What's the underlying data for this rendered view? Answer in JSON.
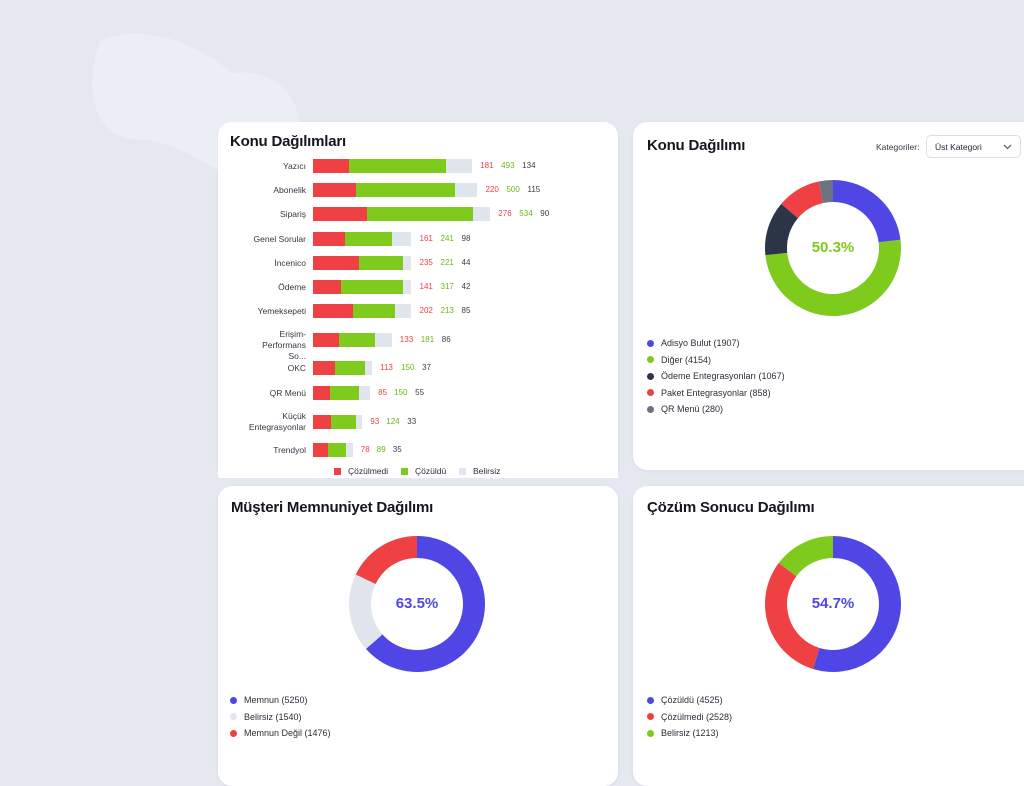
{
  "colors": {
    "red": "#ef4044",
    "green": "#7ecb1e",
    "grey": "#e0e5ee",
    "blue": "#4f46e5",
    "navy": "#2c3648",
    "darkgrey": "#6b7280"
  },
  "topic_bars": {
    "title": "Konu Dağılımları",
    "chart_data": {
      "type": "bar",
      "orientation": "horizontal",
      "stacked": true,
      "title": "Konu Dağılımları",
      "categories": [
        "Yazıcı",
        "Abonelik",
        "Sipariş",
        "Genel Sorular",
        "İncenico",
        "Ödeme",
        "Yemeksepeti",
        "Erişim-Performans So...",
        "OKC",
        "QR Menü",
        "Küçük Entegrasyonlar",
        "Trendyol"
      ],
      "category_lines": [
        [
          "Yazıcı"
        ],
        [
          "Abonelik"
        ],
        [
          "Sipariş"
        ],
        [
          "Genel Sorular"
        ],
        [
          "İncenico"
        ],
        [
          "Ödeme"
        ],
        [
          "Yemeksepeti"
        ],
        [
          "Erişim-Performans",
          "So..."
        ],
        [
          "OKC"
        ],
        [
          "QR Menü"
        ],
        [
          "Küçük",
          "Entegrasyonlar"
        ],
        [
          "Trendyol"
        ]
      ],
      "series": [
        {
          "name": "Çözülmedi",
          "color": "#ef4044",
          "values": [
            181,
            220,
            276,
            161,
            235,
            141,
            202,
            133,
            113,
            85,
            93,
            78
          ]
        },
        {
          "name": "Çözüldü",
          "color": "#7ecb1e",
          "values": [
            493,
            500,
            534,
            241,
            221,
            317,
            213,
            181,
            150,
            150,
            124,
            89
          ]
        },
        {
          "name": "Belirsiz",
          "color": "#e0e5ee",
          "values": [
            134,
            115,
            90,
            98,
            44,
            42,
            85,
            86,
            37,
            55,
            33,
            35
          ]
        }
      ],
      "legend": [
        "Çözülmedi",
        "Çözüldü",
        "Belirsiz"
      ]
    }
  },
  "topic_donut": {
    "title": "Konu Dağılımı",
    "filter_label": "Kategoriler:",
    "filter_value": "Üst Kategori",
    "center_text": "50.3%",
    "chart_data": {
      "type": "pie",
      "donut": true,
      "labels": [
        "Adisyo Bulut",
        "Diğer",
        "Ödeme Entegrasyonları",
        "Paket Entegrasyonlar",
        "QR Menü"
      ],
      "values": [
        1907,
        4154,
        1067,
        858,
        280
      ],
      "colors": [
        "#4f46e5",
        "#7ecb1e",
        "#2c3648",
        "#ef4044",
        "#6b7280"
      ],
      "legend_text": [
        "Adisyo Bulut (1907)",
        "Diğer (4154)",
        "Ödeme Entegrasyonları (1067)",
        "Paket Entegrasyonlar (858)",
        "QR Menü (280)"
      ]
    }
  },
  "satisfaction_donut": {
    "title": "Müşteri Memnuniyet Dağılımı",
    "center_text": "63.5%",
    "chart_data": {
      "type": "pie",
      "donut": true,
      "labels": [
        "Memnun",
        "Belirsiz",
        "Memnun Değil"
      ],
      "values": [
        5250,
        1540,
        1476
      ],
      "colors": [
        "#4f46e5",
        "#e0e5ee",
        "#ef4044"
      ],
      "legend_text": [
        "Memnun (5250)",
        "Belirsiz (1540)",
        "Memnun Değil (1476)"
      ]
    }
  },
  "resolution_donut": {
    "title": "Çözüm Sonucu Dağılımı",
    "center_text": "54.7%",
    "chart_data": {
      "type": "pie",
      "donut": true,
      "labels": [
        "Çözüldü",
        "Çözülmedi",
        "Belirsiz"
      ],
      "values": [
        4525,
        2528,
        1213
      ],
      "colors": [
        "#4f46e5",
        "#ef4044",
        "#7ecb1e"
      ],
      "legend_text": [
        "Çözüldü (4525)",
        "Çözülmedi (2528)",
        "Belirsiz (1213)"
      ]
    }
  }
}
